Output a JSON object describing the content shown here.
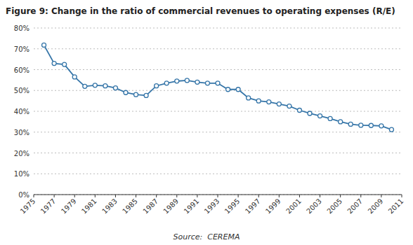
{
  "chart_data": {
    "type": "line",
    "title": "Figure 9: Change in the ratio of commercial revenues to operating expenses (R/E)",
    "annotations": [
      "Source:  CEREMA"
    ],
    "x": [
      1976,
      1977,
      1978,
      1979,
      1980,
      1981,
      1982,
      1983,
      1984,
      1985,
      1986,
      1987,
      1988,
      1989,
      1990,
      1991,
      1992,
      1993,
      1994,
      1995,
      1996,
      1997,
      1998,
      1999,
      2000,
      2001,
      2002,
      2003,
      2004,
      2005,
      2006,
      2007,
      2008,
      2009,
      2010
    ],
    "values": [
      0.718,
      0.63,
      0.625,
      0.565,
      0.52,
      0.525,
      0.522,
      0.512,
      0.49,
      0.48,
      0.476,
      0.522,
      0.535,
      0.545,
      0.548,
      0.54,
      0.535,
      0.535,
      0.505,
      0.505,
      0.464,
      0.45,
      0.445,
      0.435,
      0.425,
      0.405,
      0.39,
      0.378,
      0.365,
      0.35,
      0.338,
      0.333,
      0.332,
      0.33,
      0.312
    ],
    "color": "#3575a8",
    "marker": "circle",
    "grid": true,
    "xlim": [
      1975,
      2011
    ],
    "xticks": [
      1975,
      1977,
      1979,
      1981,
      1983,
      1985,
      1987,
      1989,
      1991,
      1993,
      1995,
      1997,
      1999,
      2001,
      2003,
      2005,
      2007,
      2009,
      2011
    ],
    "ylim": [
      0.0,
      0.8
    ],
    "yticks": [
      {
        "value": 0.0,
        "label": "0%"
      },
      {
        "value": 0.1,
        "label": "10%"
      },
      {
        "value": 0.2,
        "label": "20%"
      },
      {
        "value": 0.3,
        "label": "30%"
      },
      {
        "value": 0.4,
        "label": "40%"
      },
      {
        "value": 0.5,
        "label": "50%"
      },
      {
        "value": 0.6,
        "label": "60%"
      },
      {
        "value": 0.7,
        "label": "70%"
      },
      {
        "value": 0.8,
        "label": "80%"
      }
    ]
  }
}
